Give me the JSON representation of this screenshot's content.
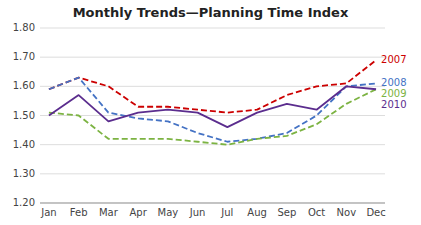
{
  "chart_data": {
    "type": "line",
    "title": "Monthly Trends—Planning Time Index",
    "categories": [
      "Jan",
      "Feb",
      "Mar",
      "Apr",
      "May",
      "Jun",
      "Jul",
      "Aug",
      "Sep",
      "Oct",
      "Nov",
      "Dec"
    ],
    "series": [
      {
        "name": "2007",
        "color": "#cc0000",
        "line_style": "dashed",
        "values": [
          1.59,
          1.63,
          1.6,
          1.53,
          1.53,
          1.52,
          1.51,
          1.52,
          1.57,
          1.6,
          1.61,
          1.69
        ]
      },
      {
        "name": "2008",
        "color": "#4472c4",
        "line_style": "dashed",
        "values": [
          1.59,
          1.63,
          1.51,
          1.49,
          1.48,
          1.44,
          1.41,
          1.42,
          1.44,
          1.5,
          1.6,
          1.61
        ]
      },
      {
        "name": "2009",
        "color": "#7cb342",
        "line_style": "dashed",
        "values": [
          1.51,
          1.5,
          1.42,
          1.42,
          1.42,
          1.41,
          1.4,
          1.42,
          1.43,
          1.47,
          1.54,
          1.59
        ]
      },
      {
        "name": "2010",
        "color": "#5b2d8e",
        "line_style": "solid",
        "values": [
          1.5,
          1.57,
          1.48,
          1.51,
          1.52,
          1.51,
          1.46,
          1.51,
          1.54,
          1.52,
          1.6,
          1.59
        ]
      }
    ],
    "ylim": [
      1.2,
      1.8
    ],
    "yticks": [
      {
        "value": 1.2,
        "label": "1.20"
      },
      {
        "value": 1.3,
        "label": "1.30"
      },
      {
        "value": 1.4,
        "label": "1.40"
      },
      {
        "value": 1.5,
        "label": "1.50"
      },
      {
        "value": 1.6,
        "label": "1.60"
      },
      {
        "value": 1.7,
        "label": "1.70"
      },
      {
        "value": 1.8,
        "label": "1.80"
      }
    ],
    "grid": true
  }
}
